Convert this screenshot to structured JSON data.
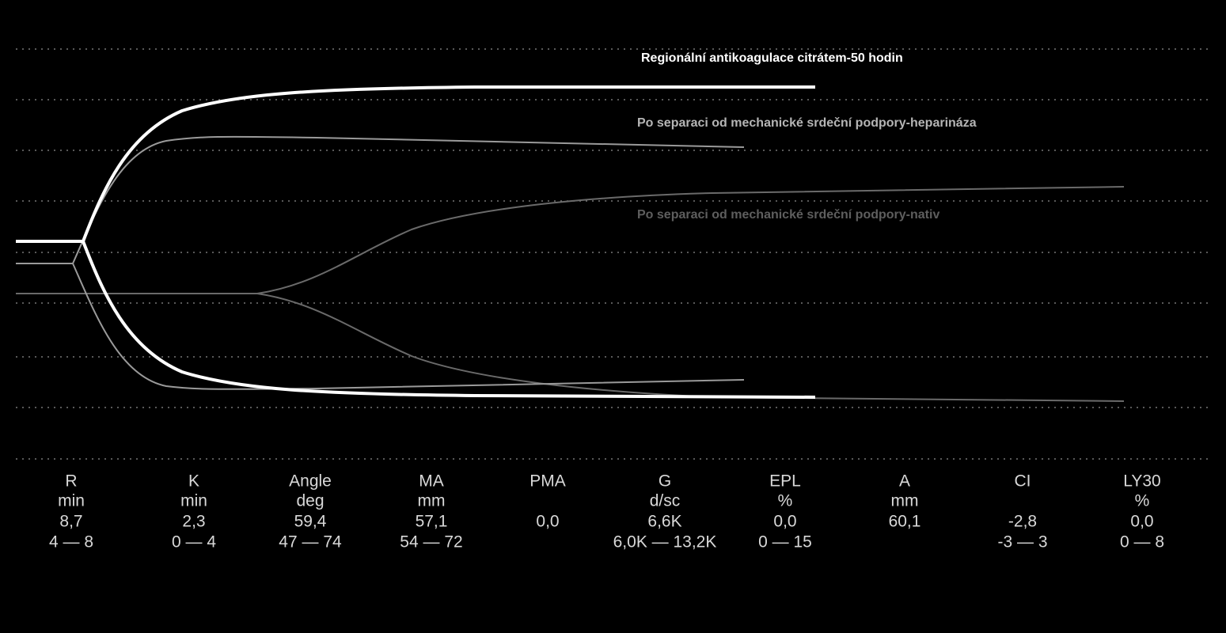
{
  "traces": [
    {
      "label": "Regionální antikoagulace citrátem-50 hodin"
    },
    {
      "label": "Po separaci od mechanické srdeční podpory-heparináza"
    },
    {
      "label": "Po separaci od mechanické srdeční podpory-nativ"
    }
  ],
  "table": {
    "columns": [
      {
        "name": "R",
        "unit": "min",
        "value": "8,7",
        "range": "4 — 8"
      },
      {
        "name": "K",
        "unit": "min",
        "value": "2,3",
        "range": "0 — 4"
      },
      {
        "name": "Angle",
        "unit": "deg",
        "value": "59,4",
        "range": "47 — 74"
      },
      {
        "name": "MA",
        "unit": "mm",
        "value": "57,1",
        "range": "54 — 72"
      },
      {
        "name": "PMA",
        "value": "0,0"
      },
      {
        "name": "G",
        "unit": "d/sc",
        "value": "6,6K",
        "range": "6,0K — 13,2K"
      },
      {
        "name": "EPL",
        "unit": "%",
        "value": "0,0",
        "range": "0 — 15"
      },
      {
        "name": "A",
        "unit": "mm",
        "value": "60,1"
      },
      {
        "name": "CI",
        "value": "-2,8",
        "range": "-3 — 3"
      },
      {
        "name": "LY30",
        "unit": "%",
        "value": "0,0",
        "range": "0 — 8"
      }
    ]
  }
}
